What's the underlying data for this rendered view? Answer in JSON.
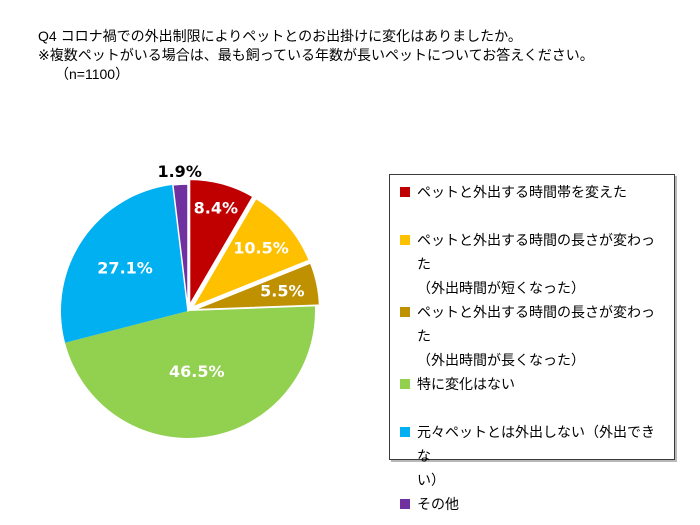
{
  "title": {
    "line1": "Q4 コロナ禍での外出制限によりペットとのお出掛けに変化はありましたか。",
    "line2": "※複数ペットがいる場合は、最も飼っている年数が長いペットについてお答えください。",
    "line3": "（n=1100）"
  },
  "chart_data": {
    "type": "pie",
    "title": "Q4 コロナ禍での外出制限によりペットとのお出掛けに変化はありましたか。",
    "subtitle": "※複数ペットがいる場合は、最も飼っている年数が長いペットについてお答えください。（n=1100）",
    "categories": [
      "ペットと外出する時間帯を変えた",
      "ペットと外出する時間の長さが変わった（外出時間が短くなった）",
      "ペットと外出する時間の長さが変わった（外出時間が長くなった）",
      "特に変化はない",
      "元々ペットとは外出しない（外出できない）",
      "その他"
    ],
    "values": [
      8.4,
      10.5,
      5.5,
      46.5,
      27.1,
      1.9
    ],
    "unit": "%",
    "colors": [
      "#C00000",
      "#FFC000",
      "#BF9000",
      "#92D050",
      "#00B0F0",
      "#7030A0"
    ],
    "data_labels": [
      "8.4%",
      "10.5%",
      "5.5%",
      "46.5%",
      "27.1%",
      "1.9%"
    ],
    "data_label_colors": [
      "#FFFFFF",
      "#FFFFFF",
      "#FFFFFF",
      "#FFFFFF",
      "#FFFFFF",
      "#000000"
    ],
    "start_angle_deg": 0,
    "direction": "clockwise",
    "legend_position": "right"
  },
  "legend": {
    "items": [
      {
        "color": "#C00000",
        "lines": [
          "ペットと外出する時間帯を変えた"
        ],
        "gap_after": true
      },
      {
        "color": "#FFC000",
        "lines": [
          "ペットと外出する時間の長さが変わった",
          "（外出時間が短くなった）"
        ],
        "gap_after": false
      },
      {
        "color": "#BF9000",
        "lines": [
          "ペットと外出する時間の長さが変わった",
          "（外出時間が長くなった）"
        ],
        "gap_after": false
      },
      {
        "color": "#92D050",
        "lines": [
          "特に変化はない"
        ],
        "gap_after": true
      },
      {
        "color": "#00B0F0",
        "lines": [
          "元々ペットとは外出しない（外出できな",
          "い）"
        ],
        "gap_after": false
      },
      {
        "color": "#7030A0",
        "lines": [
          "その他"
        ],
        "gap_after": false
      }
    ]
  }
}
